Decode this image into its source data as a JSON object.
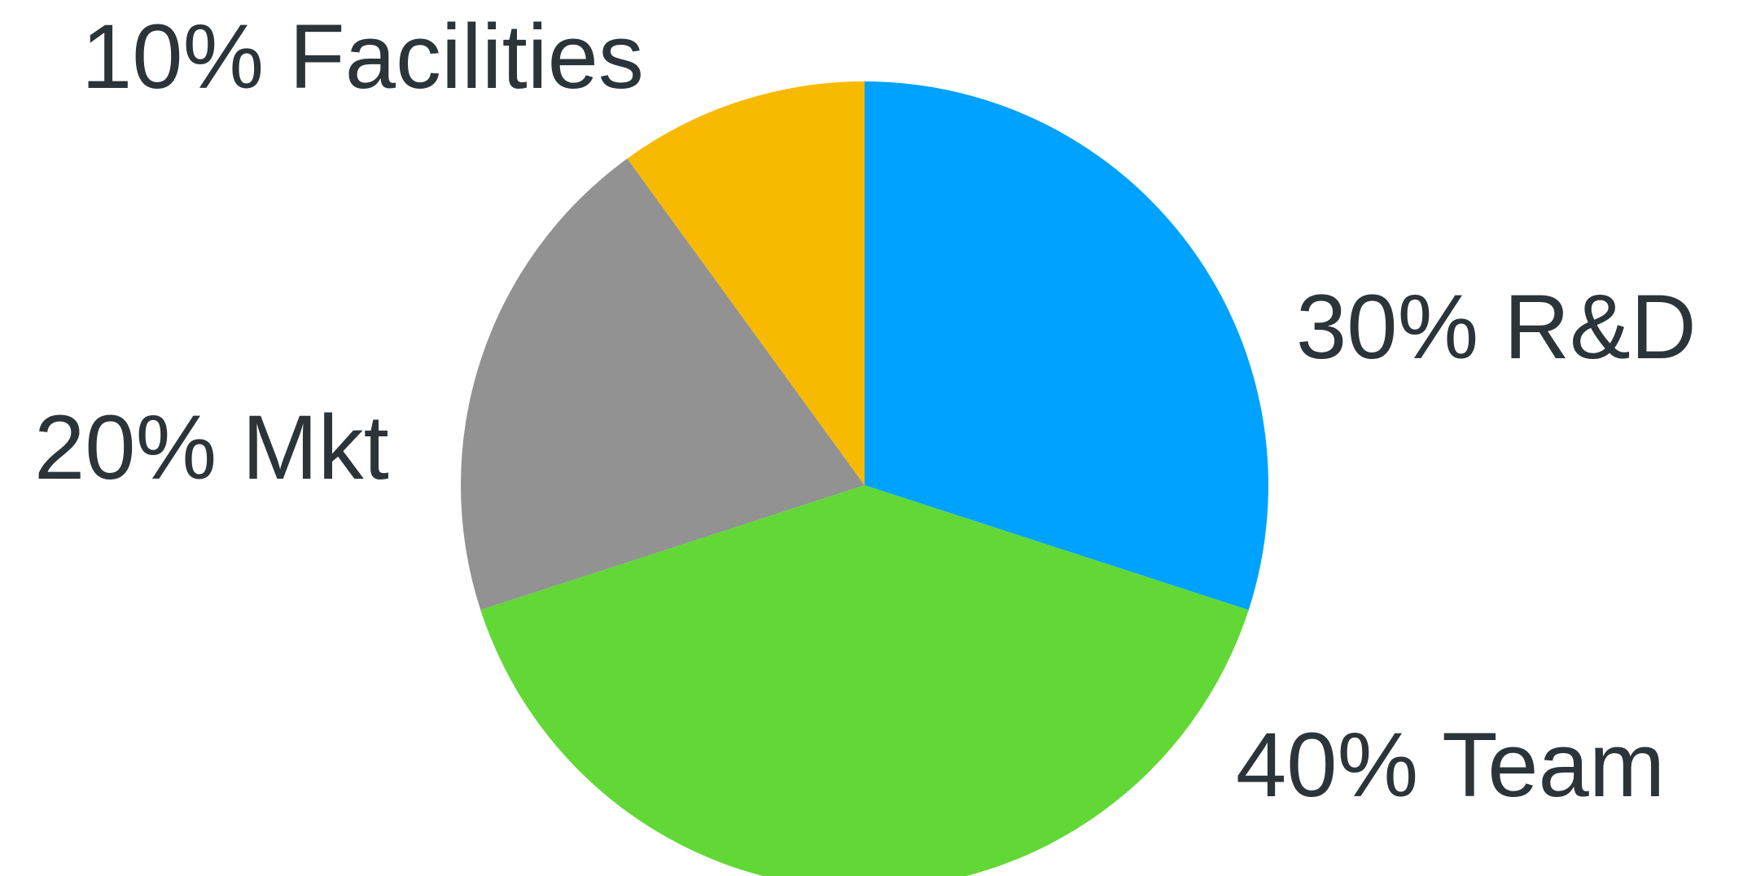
{
  "chart_data": {
    "type": "pie",
    "start_angle_deg": 90,
    "direction": "clockwise",
    "slices": [
      {
        "label": "30% R&D",
        "value": 30,
        "color": "#00a2ff"
      },
      {
        "label": "40% Team",
        "value": 40,
        "color": "#61d836"
      },
      {
        "label": "20% Mkt",
        "value": 20,
        "color": "#929292"
      },
      {
        "label": "10% Facilities",
        "value": 10,
        "color": "#f8ba00"
      }
    ]
  }
}
